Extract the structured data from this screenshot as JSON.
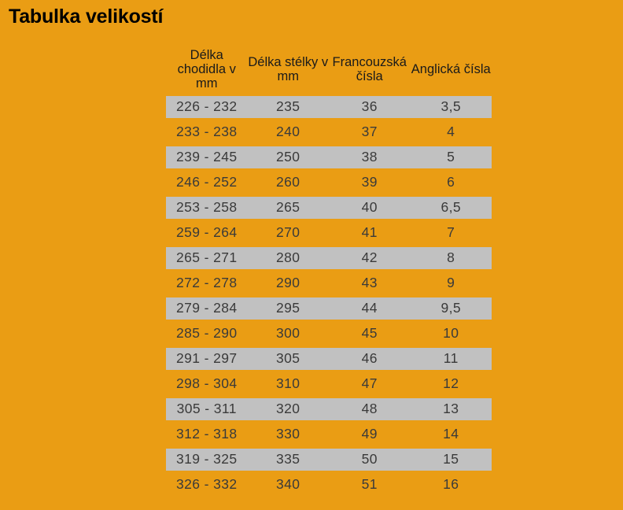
{
  "page": {
    "title": "Tabulka velikostí",
    "background_color": "#EA9D14",
    "title_color": "#000000"
  },
  "chart_data": {
    "type": "table",
    "title": "Tabulka velikostí",
    "columns": [
      {
        "label": "Délka chodidla v mm",
        "lines": [
          "Délka",
          "chodidla v",
          "mm"
        ]
      },
      {
        "label": "Délka stélky v mm",
        "lines": [
          "Délka stélky v",
          "mm"
        ]
      },
      {
        "label": "Francouzská čísla",
        "lines": [
          "Francouzská",
          "čísla"
        ]
      },
      {
        "label": "Anglická čísla",
        "lines": [
          "Anglická čísla"
        ]
      }
    ],
    "rows": [
      [
        "226 - 232",
        "235",
        "36",
        "3,5"
      ],
      [
        "233 - 238",
        "240",
        "37",
        "4"
      ],
      [
        "239 - 245",
        "250",
        "38",
        "5"
      ],
      [
        "246 - 252",
        "260",
        "39",
        "6"
      ],
      [
        "253 - 258",
        "265",
        "40",
        "6,5"
      ],
      [
        "259 - 264",
        "270",
        "41",
        "7"
      ],
      [
        "265 - 271",
        "280",
        "42",
        "8"
      ],
      [
        "272 - 278",
        "290",
        "43",
        "9"
      ],
      [
        "279 - 284",
        "295",
        "44",
        "9,5"
      ],
      [
        "285 - 290",
        "300",
        "45",
        "10"
      ],
      [
        "291 - 297",
        "305",
        "46",
        "11"
      ],
      [
        "298 - 304",
        "310",
        "47",
        "12"
      ],
      [
        "305 - 311",
        "320",
        "48",
        "13"
      ],
      [
        "312 - 318",
        "330",
        "49",
        "14"
      ],
      [
        "319 - 325",
        "335",
        "50",
        "15"
      ],
      [
        "326 - 332",
        "340",
        "51",
        "16"
      ]
    ],
    "layout": {
      "stripe_color": "#C1C1C1",
      "header_text_color": "#1A1A1A",
      "row_text_color": "#3A3A3A",
      "striping": "odd rows gray, even rows transparent (orange page background)",
      "grid": "off",
      "alignment": "center"
    }
  }
}
